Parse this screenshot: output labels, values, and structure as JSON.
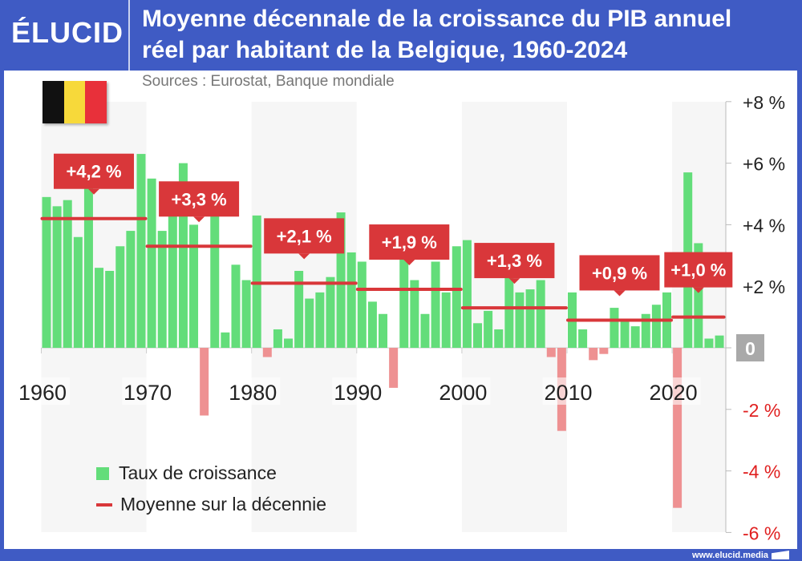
{
  "header": {
    "logo": "ÉLUCID",
    "title_line1": "Moyenne décennale de la croissance du PIB annuel",
    "title_line2": "réel par habitant de la Belgique, 1960-2024",
    "sources": "Sources : Eurostat, Banque mondiale"
  },
  "footer": {
    "url": "www.elucid.media"
  },
  "flag_colors": [
    "#111111",
    "#f7d93a",
    "#e8303a"
  ],
  "colors": {
    "header": "#3f5bc4",
    "positive_bar": "#63dd7a",
    "negative_bar": "#ee9192",
    "mean_line": "#d9373a",
    "label_box": "#d9373a",
    "negative_tick": "#e02020",
    "zero_box": "#a9a9a9",
    "band": "#f6f6f6"
  },
  "chart_data": {
    "type": "bar",
    "title": "Moyenne décennale de la croissance du PIB annuel réel par habitant de la Belgique, 1960-2024",
    "x": [
      1960,
      1961,
      1962,
      1963,
      1964,
      1965,
      1966,
      1967,
      1968,
      1969,
      1970,
      1971,
      1972,
      1973,
      1974,
      1975,
      1976,
      1977,
      1978,
      1979,
      1980,
      1981,
      1982,
      1983,
      1984,
      1985,
      1986,
      1987,
      1988,
      1989,
      1990,
      1991,
      1992,
      1993,
      1994,
      1995,
      1996,
      1997,
      1998,
      1999,
      2000,
      2001,
      2002,
      2003,
      2004,
      2005,
      2006,
      2007,
      2008,
      2009,
      2010,
      2011,
      2012,
      2013,
      2014,
      2015,
      2016,
      2017,
      2018,
      2019,
      2020,
      2021,
      2022,
      2023,
      2024
    ],
    "series": [
      {
        "name": "Taux de croissance",
        "values": [
          4.9,
          4.6,
          4.8,
          3.6,
          5.3,
          2.6,
          2.5,
          3.3,
          3.8,
          6.3,
          5.5,
          3.8,
          5.2,
          6.0,
          4.0,
          -2.2,
          5.4,
          0.5,
          2.7,
          2.2,
          4.3,
          -0.3,
          0.6,
          0.3,
          2.5,
          1.6,
          1.8,
          2.3,
          4.4,
          3.1,
          2.8,
          1.5,
          1.1,
          -1.3,
          2.9,
          2.2,
          1.1,
          2.8,
          1.8,
          3.3,
          3.5,
          0.8,
          1.2,
          0.6,
          2.9,
          1.8,
          1.9,
          2.2,
          -0.3,
          -2.7,
          1.8,
          0.6,
          -0.4,
          -0.2,
          1.3,
          0.9,
          0.7,
          1.1,
          1.4,
          1.8,
          -5.2,
          5.7,
          3.4,
          0.3,
          0.4
        ]
      },
      {
        "name": "Moyenne sur la décennie",
        "decades": [
          {
            "start": 1960,
            "end": 1969,
            "value": 4.2,
            "label": "+4,2 %"
          },
          {
            "start": 1970,
            "end": 1979,
            "value": 3.3,
            "label": "+3,3 %"
          },
          {
            "start": 1980,
            "end": 1989,
            "value": 2.1,
            "label": "+2,1 %"
          },
          {
            "start": 1990,
            "end": 1999,
            "value": 1.9,
            "label": "+1,9 %"
          },
          {
            "start": 2000,
            "end": 2009,
            "value": 1.3,
            "label": "+1,3 %"
          },
          {
            "start": 2010,
            "end": 2019,
            "value": 0.9,
            "label": "+0,9 %"
          },
          {
            "start": 2020,
            "end": 2024,
            "value": 1.0,
            "label": "+1,0 %"
          }
        ]
      }
    ],
    "ylim": [
      -6,
      8
    ],
    "y_ticks": [
      {
        "v": 8,
        "label": "+8 %"
      },
      {
        "v": 6,
        "label": "+6 %"
      },
      {
        "v": 4,
        "label": "+4 %"
      },
      {
        "v": 2,
        "label": "+2 %"
      },
      {
        "v": 0,
        "label": "0"
      },
      {
        "v": -2,
        "label": "-2 %"
      },
      {
        "v": -4,
        "label": "-4 %"
      },
      {
        "v": -6,
        "label": "-6 %"
      }
    ],
    "x_ticks": [
      {
        "v": 1960,
        "label": "1960"
      },
      {
        "v": 1970,
        "label": "1970"
      },
      {
        "v": 1980,
        "label": "1980"
      },
      {
        "v": 1990,
        "label": "1990"
      },
      {
        "v": 2000,
        "label": "2000"
      },
      {
        "v": 2010,
        "label": "2010"
      },
      {
        "v": 2020,
        "label": "2020"
      }
    ],
    "legend": {
      "position": "bottom-left",
      "items": [
        "Taux de croissance",
        "Moyenne sur la décennie"
      ]
    },
    "grid": false
  }
}
